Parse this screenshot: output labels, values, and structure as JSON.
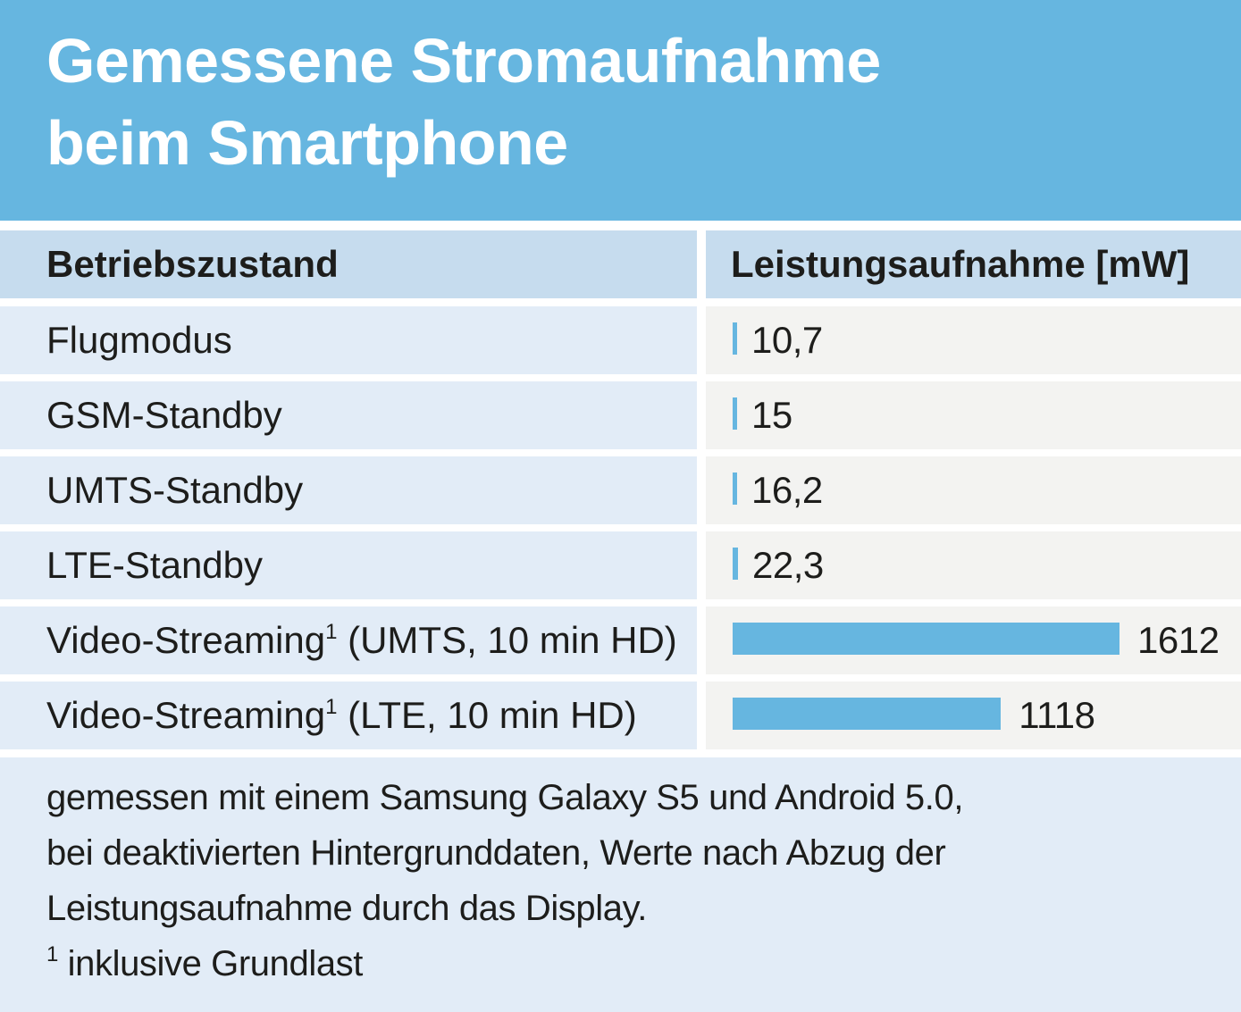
{
  "title_line1": "Gemessene Stromaufnahme",
  "title_line2": "beim Smartphone",
  "chart_data": {
    "type": "table",
    "headers": [
      "Betriebszustand",
      "Leistungsaufnahme [mW]"
    ],
    "rows": [
      {
        "label": "Flugmodus",
        "sup": "",
        "suffix": "",
        "value": 10.7,
        "value_text": "10,7"
      },
      {
        "label": "GSM-Standby",
        "sup": "",
        "suffix": "",
        "value": 15,
        "value_text": "15"
      },
      {
        "label": "UMTS-Standby",
        "sup": "",
        "suffix": "",
        "value": 16.2,
        "value_text": "16,2"
      },
      {
        "label": "LTE-Standby",
        "sup": "",
        "suffix": "",
        "value": 22.3,
        "value_text": "22,3"
      },
      {
        "label": "Video-Streaming",
        "sup": "1",
        "suffix": " (UMTS, 10 min HD)",
        "value": 1612,
        "value_text": "1612"
      },
      {
        "label": "Video-Streaming",
        "sup": "1",
        "suffix": " (LTE, 10 min HD)",
        "value": 1118,
        "value_text": "1118"
      }
    ],
    "bar_color": "#66b6e0"
  },
  "footer": {
    "line1": "gemessen mit einem Samsung Galaxy S5 und Android 5.0,",
    "line2": "bei deaktivierten Hintergrunddaten, Werte nach Abzug der",
    "line3": "Leistungsaufnahme durch das Display.",
    "footnote_mark": "1",
    "footnote_text": " inklusive Grundlast"
  }
}
